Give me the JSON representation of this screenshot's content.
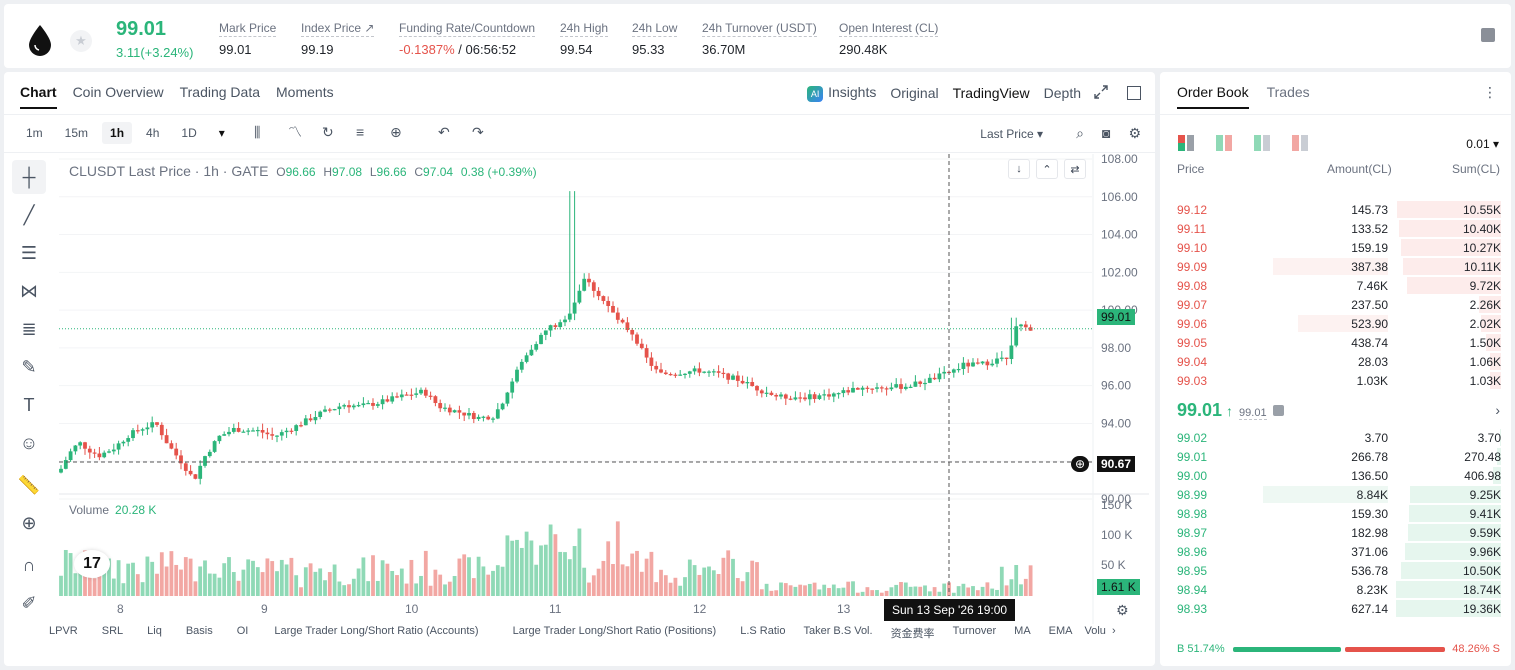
{
  "header": {
    "last_price": "99.01",
    "change": "3.11(+3.24%)",
    "stats": [
      {
        "label": "Mark Price",
        "value": "99.01"
      },
      {
        "label": "Index Price ↗",
        "value": "99.19"
      },
      {
        "label": "Funding Rate/Countdown",
        "value_neg": "-0.1387%",
        "value": " / 06:56:52"
      },
      {
        "label": "24h High",
        "value": "99.54"
      },
      {
        "label": "24h Low",
        "value": "95.33"
      },
      {
        "label": "24h Turnover (USDT)",
        "value": "36.70M"
      },
      {
        "label": "Open Interest (CL)",
        "value": "290.48K"
      }
    ]
  },
  "chart_tabs": [
    "Chart",
    "Coin Overview",
    "Trading Data",
    "Moments"
  ],
  "view_tabs": {
    "insights": "Insights",
    "ai_badge": "AI",
    "original": "Original",
    "tradingview": "TradingView",
    "depth": "Depth"
  },
  "intervals": [
    "1m",
    "15m",
    "1h",
    "4h",
    "1D"
  ],
  "price_type": "Last Price ▾",
  "legend": {
    "symbol": "CLUSDT Last Price · 1h · GATE",
    "o_key": "O",
    "o": "96.66",
    "h_key": "H",
    "h": "97.08",
    "l_key": "L",
    "l": "96.66",
    "c_key": "C",
    "c": "97.04",
    "chg": "0.38 (+0.39%)"
  },
  "volume_legend": {
    "label": "Volume",
    "value": "20.28 K"
  },
  "price_tags": {
    "last": "99.01",
    "cursor": "90.67",
    "volume": "1.61 K"
  },
  "crosshair_time": "Sun 13 Sep '26   19:00",
  "tv_logo": "17",
  "indicators": [
    "LPVR",
    "SRL",
    "Liq",
    "Basis",
    "OI",
    "Large Trader Long/Short Ratio (Accounts)",
    "Large Trader Long/Short Ratio (Positions)",
    "L.S Ratio",
    "Taker B.S Vol.",
    "资金费率",
    "Turnover",
    "MA",
    "EMA",
    "Volu"
  ],
  "chart_data": {
    "type": "candlestick",
    "title": "CLUSDT Last Price · 1h · GATE",
    "y_axis": {
      "min": 90,
      "max": 108,
      "ticks": [
        "108.00",
        "106.00",
        "104.00",
        "102.00",
        "100.00",
        "98.00",
        "96.00",
        "94.00",
        "92.00",
        "90.00"
      ]
    },
    "volume_axis": {
      "ticks": [
        "150 K",
        "100 K",
        "50 K"
      ]
    },
    "x_ticks": [
      "8",
      "9",
      "10",
      "11",
      "12",
      "13"
    ],
    "colors": {
      "up": "#2bb57a",
      "down": "#e5534b",
      "vol_up": "#8fd9b6",
      "vol_down": "#f2a7a3"
    }
  },
  "orderbook": {
    "tabs": [
      "Order Book",
      "Trades"
    ],
    "precision": "0.01 ▾",
    "headers": {
      "price": "Price",
      "amount": "Amount(CL)",
      "sum": "Sum(CL)"
    },
    "asks": [
      {
        "p": "99.12",
        "a": "145.73",
        "s": "10.55K"
      },
      {
        "p": "99.11",
        "a": "133.52",
        "s": "10.40K"
      },
      {
        "p": "99.10",
        "a": "159.19",
        "s": "10.27K"
      },
      {
        "p": "99.09",
        "a": "387.38",
        "s": "10.11K"
      },
      {
        "p": "99.08",
        "a": "7.46K",
        "s": "9.72K"
      },
      {
        "p": "99.07",
        "a": "237.50",
        "s": "2.26K"
      },
      {
        "p": "99.06",
        "a": "523.90",
        "s": "2.02K"
      },
      {
        "p": "99.05",
        "a": "438.74",
        "s": "1.50K"
      },
      {
        "p": "99.04",
        "a": "28.03",
        "s": "1.06K"
      },
      {
        "p": "99.03",
        "a": "1.03K",
        "s": "1.03K"
      }
    ],
    "mid_price": "99.01",
    "mid_arrow": "↑",
    "mid_mark": "99.01",
    "bids": [
      {
        "p": "99.02",
        "a": "3.70",
        "s": "3.70"
      },
      {
        "p": "99.01",
        "a": "266.78",
        "s": "270.48"
      },
      {
        "p": "99.00",
        "a": "136.50",
        "s": "406.98"
      },
      {
        "p": "98.99",
        "a": "8.84K",
        "s": "9.25K"
      },
      {
        "p": "98.98",
        "a": "159.30",
        "s": "9.41K"
      },
      {
        "p": "98.97",
        "a": "182.98",
        "s": "9.59K"
      },
      {
        "p": "98.96",
        "a": "371.06",
        "s": "9.96K"
      },
      {
        "p": "98.95",
        "a": "536.78",
        "s": "10.50K"
      },
      {
        "p": "98.94",
        "a": "8.23K",
        "s": "18.74K"
      },
      {
        "p": "98.93",
        "a": "627.14",
        "s": "19.36K"
      }
    ],
    "buy_ratio": "B 51.74%",
    "sell_ratio": "48.26% S"
  }
}
